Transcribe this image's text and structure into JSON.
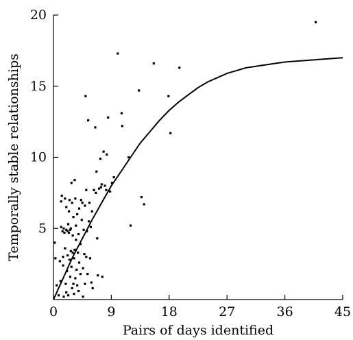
{
  "chart_data": {
    "type": "scatter",
    "xlabel": "Pairs of days identified",
    "ylabel": "Temporally stable relationships",
    "xlim": [
      0,
      45
    ],
    "ylim": [
      0,
      20
    ],
    "x_ticks": [
      0,
      9,
      18,
      27,
      36,
      45
    ],
    "y_ticks": [
      5,
      10,
      15,
      20
    ],
    "grid": false,
    "series": [
      {
        "kind": "points",
        "points": [
          [
            0.2,
            4.0
          ],
          [
            0.3,
            2.9
          ],
          [
            0.5,
            1.0
          ],
          [
            0.8,
            0.3
          ],
          [
            1.0,
            2.7
          ],
          [
            1.1,
            1.3
          ],
          [
            1.2,
            5.1
          ],
          [
            1.2,
            6.9
          ],
          [
            1.3,
            7.3
          ],
          [
            1.4,
            4.8
          ],
          [
            1.5,
            2.4
          ],
          [
            1.5,
            3.0
          ],
          [
            1.6,
            0.2
          ],
          [
            1.6,
            5.0
          ],
          [
            1.7,
            4.7
          ],
          [
            1.8,
            7.1
          ],
          [
            1.8,
            3.6
          ],
          [
            1.9,
            1.1
          ],
          [
            2.0,
            6.5
          ],
          [
            2.0,
            4.9
          ],
          [
            2.0,
            0.5
          ],
          [
            2.1,
            2.0
          ],
          [
            2.2,
            4.8
          ],
          [
            2.2,
            3.1
          ],
          [
            2.3,
            0.3
          ],
          [
            2.3,
            5.3
          ],
          [
            2.4,
            6.2
          ],
          [
            2.4,
            4.7
          ],
          [
            2.5,
            2.8
          ],
          [
            2.5,
            7.0
          ],
          [
            2.6,
            1.6
          ],
          [
            2.6,
            4.9
          ],
          [
            2.7,
            3.4
          ],
          [
            2.7,
            5.0
          ],
          [
            2.8,
            8.2
          ],
          [
            2.8,
            2.3
          ],
          [
            2.9,
            0.8
          ],
          [
            2.9,
            6.8
          ],
          [
            3.0,
            3.3
          ],
          [
            3.0,
            4.5
          ],
          [
            3.1,
            1.1
          ],
          [
            3.1,
            5.8
          ],
          [
            3.2,
            0.4
          ],
          [
            3.2,
            2.9
          ],
          [
            3.3,
            8.4
          ],
          [
            3.3,
            3.5
          ],
          [
            3.4,
            7.1
          ],
          [
            3.4,
            1.5
          ],
          [
            3.5,
            5.2
          ],
          [
            3.5,
            4.2
          ],
          [
            3.6,
            2.1
          ],
          [
            3.7,
            6.0
          ],
          [
            3.7,
            1.0
          ],
          [
            3.8,
            3.3
          ],
          [
            3.9,
            4.6
          ],
          [
            3.9,
            0.6
          ],
          [
            4.0,
            6.4
          ],
          [
            4.0,
            2.6
          ],
          [
            4.2,
            3.9
          ],
          [
            4.2,
            1.8
          ],
          [
            4.3,
            7.0
          ],
          [
            4.4,
            5.6
          ],
          [
            4.5,
            6.8
          ],
          [
            4.6,
            2.2
          ],
          [
            4.6,
            0.2
          ],
          [
            4.7,
            4.9
          ],
          [
            4.8,
            3.2
          ],
          [
            4.9,
            6.6
          ],
          [
            4.9,
            1.1
          ],
          [
            5.0,
            14.3
          ],
          [
            5.1,
            3.0
          ],
          [
            5.1,
            7.7
          ],
          [
            5.2,
            4.8
          ],
          [
            5.3,
            1.8
          ],
          [
            5.4,
            12.6
          ],
          [
            5.5,
            5.5
          ],
          [
            5.6,
            6.8
          ],
          [
            5.7,
            2.9
          ],
          [
            5.8,
            5.1
          ],
          [
            5.9,
            1.2
          ],
          [
            6.0,
            6.2
          ],
          [
            6.1,
            0.8
          ],
          [
            6.3,
            7.7
          ],
          [
            6.5,
            12.1
          ],
          [
            6.6,
            7.5
          ],
          [
            6.7,
            9.0
          ],
          [
            6.8,
            4.3
          ],
          [
            6.9,
            1.7
          ],
          [
            7.1,
            7.8
          ],
          [
            7.3,
            9.9
          ],
          [
            7.4,
            7.9
          ],
          [
            7.5,
            8.1
          ],
          [
            7.6,
            1.6
          ],
          [
            7.8,
            10.4
          ],
          [
            8.0,
            8.0
          ],
          [
            8.2,
            7.7
          ],
          [
            8.3,
            10.2
          ],
          [
            8.5,
            12.8
          ],
          [
            8.8,
            7.6
          ],
          [
            9.1,
            8.2
          ],
          [
            9.4,
            8.6
          ],
          [
            10.0,
            17.3
          ],
          [
            10.6,
            13.1
          ],
          [
            10.7,
            12.2
          ],
          [
            11.7,
            10.0
          ],
          [
            12.0,
            5.2
          ],
          [
            13.3,
            14.7
          ],
          [
            13.7,
            7.2
          ],
          [
            14.1,
            6.7
          ],
          [
            15.6,
            16.6
          ],
          [
            17.9,
            14.3
          ],
          [
            18.2,
            11.7
          ],
          [
            19.6,
            16.3
          ],
          [
            40.8,
            19.5
          ]
        ]
      },
      {
        "kind": "fitted-curve",
        "points": [
          [
            0,
            0
          ],
          [
            1.5,
            1.5
          ],
          [
            3,
            3.0
          ],
          [
            4.5,
            4.3
          ],
          [
            6,
            5.6
          ],
          [
            7.5,
            6.8
          ],
          [
            9,
            8.0
          ],
          [
            10.5,
            9.0
          ],
          [
            12,
            10.0
          ],
          [
            13.5,
            11.0
          ],
          [
            15,
            11.8
          ],
          [
            16.5,
            12.6
          ],
          [
            18,
            13.3
          ],
          [
            19.5,
            13.9
          ],
          [
            21,
            14.4
          ],
          [
            22.5,
            14.9
          ],
          [
            24,
            15.3
          ],
          [
            25.5,
            15.6
          ],
          [
            27,
            15.9
          ],
          [
            28.5,
            16.1
          ],
          [
            30,
            16.3
          ],
          [
            31.5,
            16.4
          ],
          [
            33,
            16.5
          ],
          [
            34.5,
            16.6
          ],
          [
            36,
            16.7
          ],
          [
            37.5,
            16.75
          ],
          [
            39,
            16.8
          ],
          [
            40.5,
            16.85
          ],
          [
            42,
            16.9
          ],
          [
            43.5,
            16.95
          ],
          [
            45,
            17.0
          ]
        ]
      }
    ]
  }
}
